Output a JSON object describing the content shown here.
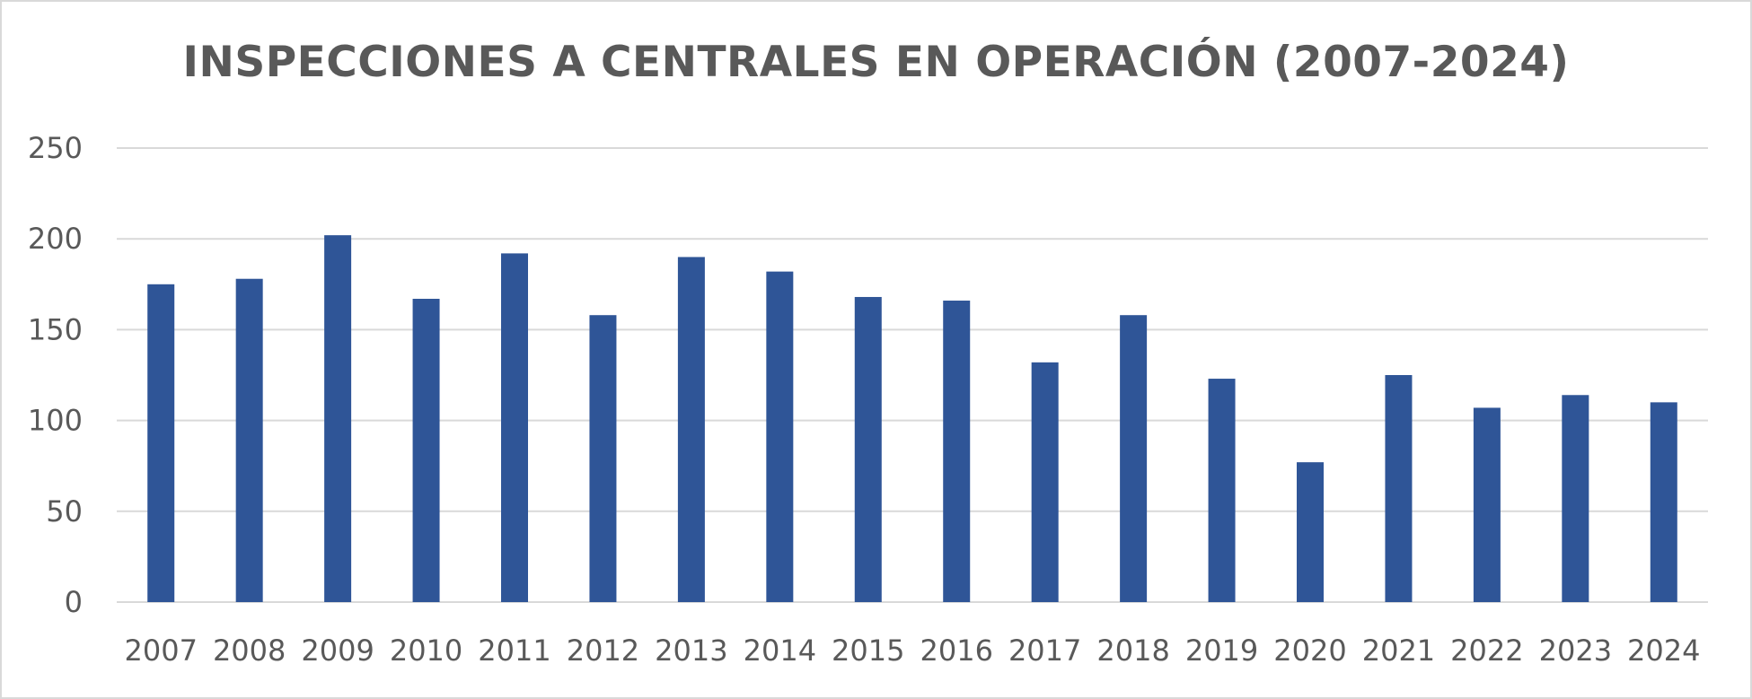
{
  "chart_data": {
    "type": "bar",
    "title": "INSPECCIONES A CENTRALES EN OPERACIÓN (2007-2024)",
    "xlabel": "",
    "ylabel": "",
    "categories": [
      "2007",
      "2008",
      "2009",
      "2010",
      "2011",
      "2012",
      "2013",
      "2014",
      "2015",
      "2016",
      "2017",
      "2018",
      "2019",
      "2020",
      "2021",
      "2022",
      "2023",
      "2024"
    ],
    "series": [
      {
        "values": [
          175,
          178,
          202,
          167,
          192,
          158,
          190,
          182,
          168,
          166,
          132,
          158,
          123,
          77,
          125,
          107,
          114,
          110
        ],
        "color": "#2f5597"
      }
    ],
    "ylim": [
      0,
      250
    ],
    "yticks": [
      0,
      50,
      100,
      150,
      200,
      250
    ],
    "grid": true,
    "legend": "none",
    "colors": {
      "bar": "#2f5597",
      "grid": "#d9d9d9",
      "text": "#595959",
      "border": "#d9d9d9"
    }
  }
}
